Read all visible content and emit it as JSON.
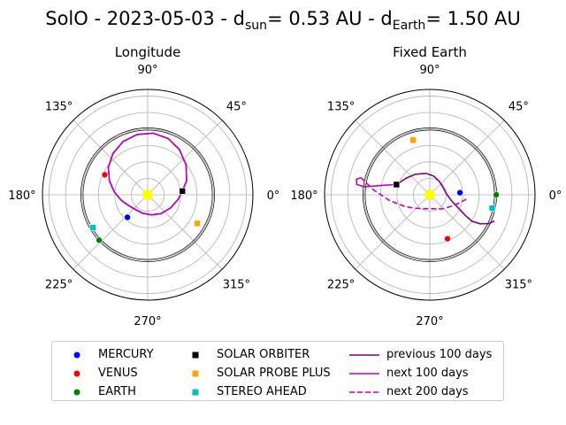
{
  "figure": {
    "title_prefix": "SolO - 2023-05-03 - d",
    "title_sun_sub": "sun",
    "title_mid": "= 0.53 AU - d",
    "title_earth_sub": "Earth",
    "title_suffix": "= 1.50 AU"
  },
  "chart_data": [
    {
      "type": "scatter",
      "projection": "polar",
      "title": "Longitude",
      "angle_ticks": [
        {
          "deg": 0,
          "label": "0°"
        },
        {
          "deg": 45,
          "label": "45°"
        },
        {
          "deg": 90,
          "label": "90°"
        },
        {
          "deg": 135,
          "label": "135°"
        },
        {
          "deg": 180,
          "label": "180°"
        },
        {
          "deg": 225,
          "label": "225°"
        },
        {
          "deg": 270,
          "label": "270°"
        },
        {
          "deg": 315,
          "label": "315°"
        }
      ],
      "rmax_au": 1.6,
      "grid": true,
      "sun_color": "#ffff00",
      "bodies": [
        {
          "name": "MERCURY",
          "lon_deg": 228,
          "r_au": 0.46,
          "color": "#0000ff",
          "marker": "circle"
        },
        {
          "name": "VENUS",
          "lon_deg": 155,
          "r_au": 0.72,
          "color": "#ff0000",
          "marker": "circle"
        },
        {
          "name": "EARTH",
          "lon_deg": 223,
          "r_au": 1.01,
          "color": "#008000",
          "marker": "circle"
        },
        {
          "name": "SOLAR ORBITER",
          "lon_deg": 6,
          "r_au": 0.53,
          "color": "#000000",
          "marker": "square"
        },
        {
          "name": "SOLAR PROBE PLUS",
          "lon_deg": 330,
          "r_au": 0.87,
          "color": "#ffa500",
          "marker": "square"
        },
        {
          "name": "STEREO AHEAD",
          "lon_deg": 211,
          "r_au": 0.97,
          "color": "#00bfbf",
          "marker": "square"
        }
      ],
      "series": [
        {
          "name": "previous 100 days",
          "color": "#800080",
          "style": "solid",
          "points": [
            [
              6,
              0.53
            ],
            [
              20,
              0.63
            ],
            [
              38,
              0.74
            ],
            [
              55,
              0.84
            ],
            [
              70,
              0.91
            ],
            [
              85,
              0.94
            ],
            [
              100,
              0.93
            ],
            [
              115,
              0.89
            ],
            [
              130,
              0.82
            ],
            [
              145,
              0.73
            ],
            [
              160,
              0.62
            ],
            [
              175,
              0.51
            ],
            [
              192,
              0.41
            ],
            [
              210,
              0.33
            ],
            [
              232,
              0.29
            ],
            [
              255,
              0.29
            ],
            [
              280,
              0.31
            ],
            [
              305,
              0.35
            ],
            [
              330,
              0.4
            ],
            [
              352,
              0.47
            ],
            [
              6,
              0.53
            ]
          ]
        },
        {
          "name": "next 100 days",
          "color": "#bf00bf",
          "style": "solid",
          "points": [
            [
              6,
              0.53
            ],
            [
              20,
              0.63
            ],
            [
              38,
              0.74
            ],
            [
              55,
              0.84
            ],
            [
              70,
              0.91
            ],
            [
              85,
              0.94
            ],
            [
              100,
              0.93
            ],
            [
              115,
              0.89
            ],
            [
              130,
              0.82
            ],
            [
              145,
              0.73
            ],
            [
              160,
              0.62
            ],
            [
              175,
              0.51
            ],
            [
              192,
              0.41
            ],
            [
              210,
              0.33
            ],
            [
              232,
              0.29
            ],
            [
              255,
              0.29
            ],
            [
              280,
              0.31
            ],
            [
              305,
              0.35
            ],
            [
              330,
              0.4
            ],
            [
              352,
              0.47
            ],
            [
              6,
              0.53
            ]
          ]
        }
      ]
    },
    {
      "type": "scatter",
      "projection": "polar",
      "title": "Fixed Earth",
      "angle_ticks": [
        {
          "deg": 0,
          "label": "0°"
        },
        {
          "deg": 45,
          "label": "45°"
        },
        {
          "deg": 90,
          "label": "90°"
        },
        {
          "deg": 135,
          "label": "135°"
        },
        {
          "deg": 180,
          "label": "180°"
        },
        {
          "deg": 225,
          "label": "225°"
        },
        {
          "deg": 270,
          "label": "270°"
        },
        {
          "deg": 315,
          "label": "315°"
        }
      ],
      "rmax_au": 1.6,
      "grid": true,
      "sun_color": "#ffff00",
      "bodies": [
        {
          "name": "MERCURY",
          "lon_deg": 4,
          "r_au": 0.46,
          "color": "#0000ff",
          "marker": "circle"
        },
        {
          "name": "VENUS",
          "lon_deg": 292,
          "r_au": 0.72,
          "color": "#ff0000",
          "marker": "circle"
        },
        {
          "name": "EARTH",
          "lon_deg": 0,
          "r_au": 1.01,
          "color": "#008000",
          "marker": "circle"
        },
        {
          "name": "SOLAR ORBITER",
          "lon_deg": 163,
          "r_au": 0.53,
          "color": "#000000",
          "marker": "square"
        },
        {
          "name": "SOLAR PROBE PLUS",
          "lon_deg": 107,
          "r_au": 0.87,
          "color": "#ffa500",
          "marker": "square"
        },
        {
          "name": "STEREO AHEAD",
          "lon_deg": 348,
          "r_au": 0.97,
          "color": "#00bfbf",
          "marker": "square"
        }
      ],
      "series": [
        {
          "name": "previous 100 days",
          "color": "#800080",
          "style": "solid",
          "points": [
            [
              163,
              0.53
            ],
            [
              145,
              0.44
            ],
            [
              125,
              0.38
            ],
            [
              100,
              0.33
            ],
            [
              78,
              0.29
            ],
            [
              55,
              0.25
            ],
            [
              30,
              0.23
            ],
            [
              5,
              0.25
            ],
            [
              -15,
              0.34
            ],
            [
              -25,
              0.48
            ],
            [
              -30,
              0.62
            ],
            [
              -32,
              0.76
            ],
            [
              -30,
              0.88
            ],
            [
              -26,
              1.0
            ],
            [
              -22,
              1.06
            ]
          ]
        },
        {
          "name": "next 100 days",
          "color": "#bf00bf",
          "style": "solid",
          "points": [
            [
              163,
              0.53
            ],
            [
              168,
              0.7
            ],
            [
              171,
              0.85
            ],
            [
              173,
              1.0
            ],
            [
              172,
              1.12
            ],
            [
              168,
              1.14
            ],
            [
              166,
              1.08
            ]
          ]
        },
        {
          "name": "next 200 days",
          "color": "#bf00bf",
          "style": "dashed",
          "points": [
            [
              166,
              1.08
            ],
            [
              175,
              0.86
            ],
            [
              188,
              0.62
            ],
            [
              205,
              0.42
            ],
            [
              225,
              0.29
            ],
            [
              255,
              0.22
            ],
            [
              285,
              0.22
            ],
            [
              310,
              0.28
            ],
            [
              330,
              0.36
            ],
            [
              342,
              0.44
            ],
            [
              350,
              0.52
            ],
            [
              355,
              0.58
            ]
          ]
        }
      ]
    }
  ],
  "legend": {
    "items": [
      {
        "label": "MERCURY",
        "kind": "dot",
        "color": "#0000ff"
      },
      {
        "label": "VENUS",
        "kind": "dot",
        "color": "#ff0000"
      },
      {
        "label": "EARTH",
        "kind": "dot",
        "color": "#008000"
      },
      {
        "label": "SOLAR ORBITER",
        "kind": "square",
        "color": "#000000"
      },
      {
        "label": "SOLAR PROBE PLUS",
        "kind": "square",
        "color": "#ffa500"
      },
      {
        "label": "STEREO AHEAD",
        "kind": "square",
        "color": "#00bfbf"
      },
      {
        "label": "previous 100 days",
        "kind": "line",
        "color": "#800080"
      },
      {
        "label": "next 100 days",
        "kind": "line",
        "color": "#bf00bf"
      },
      {
        "label": "next 200 days",
        "kind": "dashed",
        "color": "#bf00bf"
      }
    ]
  }
}
